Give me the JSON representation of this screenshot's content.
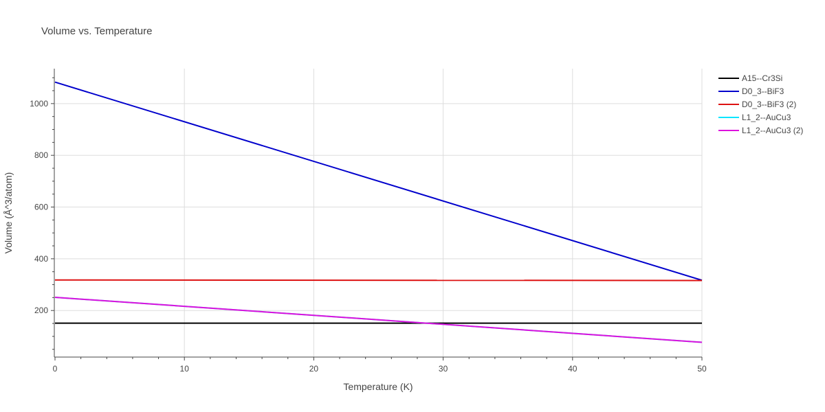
{
  "chart_data": {
    "type": "line",
    "title": "Volume vs. Temperature",
    "xlabel": "Temperature (K)",
    "ylabel": "Volume (Å^3/atom)",
    "xlim": [
      0,
      50
    ],
    "ylim": [
      20,
      1135
    ],
    "xticks": [
      0,
      10,
      20,
      30,
      40,
      50
    ],
    "yticks": [
      200,
      400,
      600,
      800,
      1000
    ],
    "grid": true,
    "legend_position": "top-right",
    "series": [
      {
        "name": "A15--Cr3Si",
        "color": "#000000",
        "x": [
          0,
          50
        ],
        "y": [
          151,
          151
        ]
      },
      {
        "name": "D0_3--BiF3",
        "color": "#0000cc",
        "x": [
          0,
          50
        ],
        "y": [
          1083,
          317
        ]
      },
      {
        "name": "D0_3--BiF3 (2)",
        "color": "#dd1111",
        "x": [
          0,
          50
        ],
        "y": [
          318,
          316
        ]
      },
      {
        "name": "L1_2--AuCu3",
        "color": "#00e5ff",
        "x": [
          0,
          50
        ],
        "y": [
          251,
          77
        ]
      },
      {
        "name": "L1_2--AuCu3 (2)",
        "color": "#dd11dd",
        "x": [
          0,
          50
        ],
        "y": [
          251,
          77
        ]
      }
    ]
  }
}
